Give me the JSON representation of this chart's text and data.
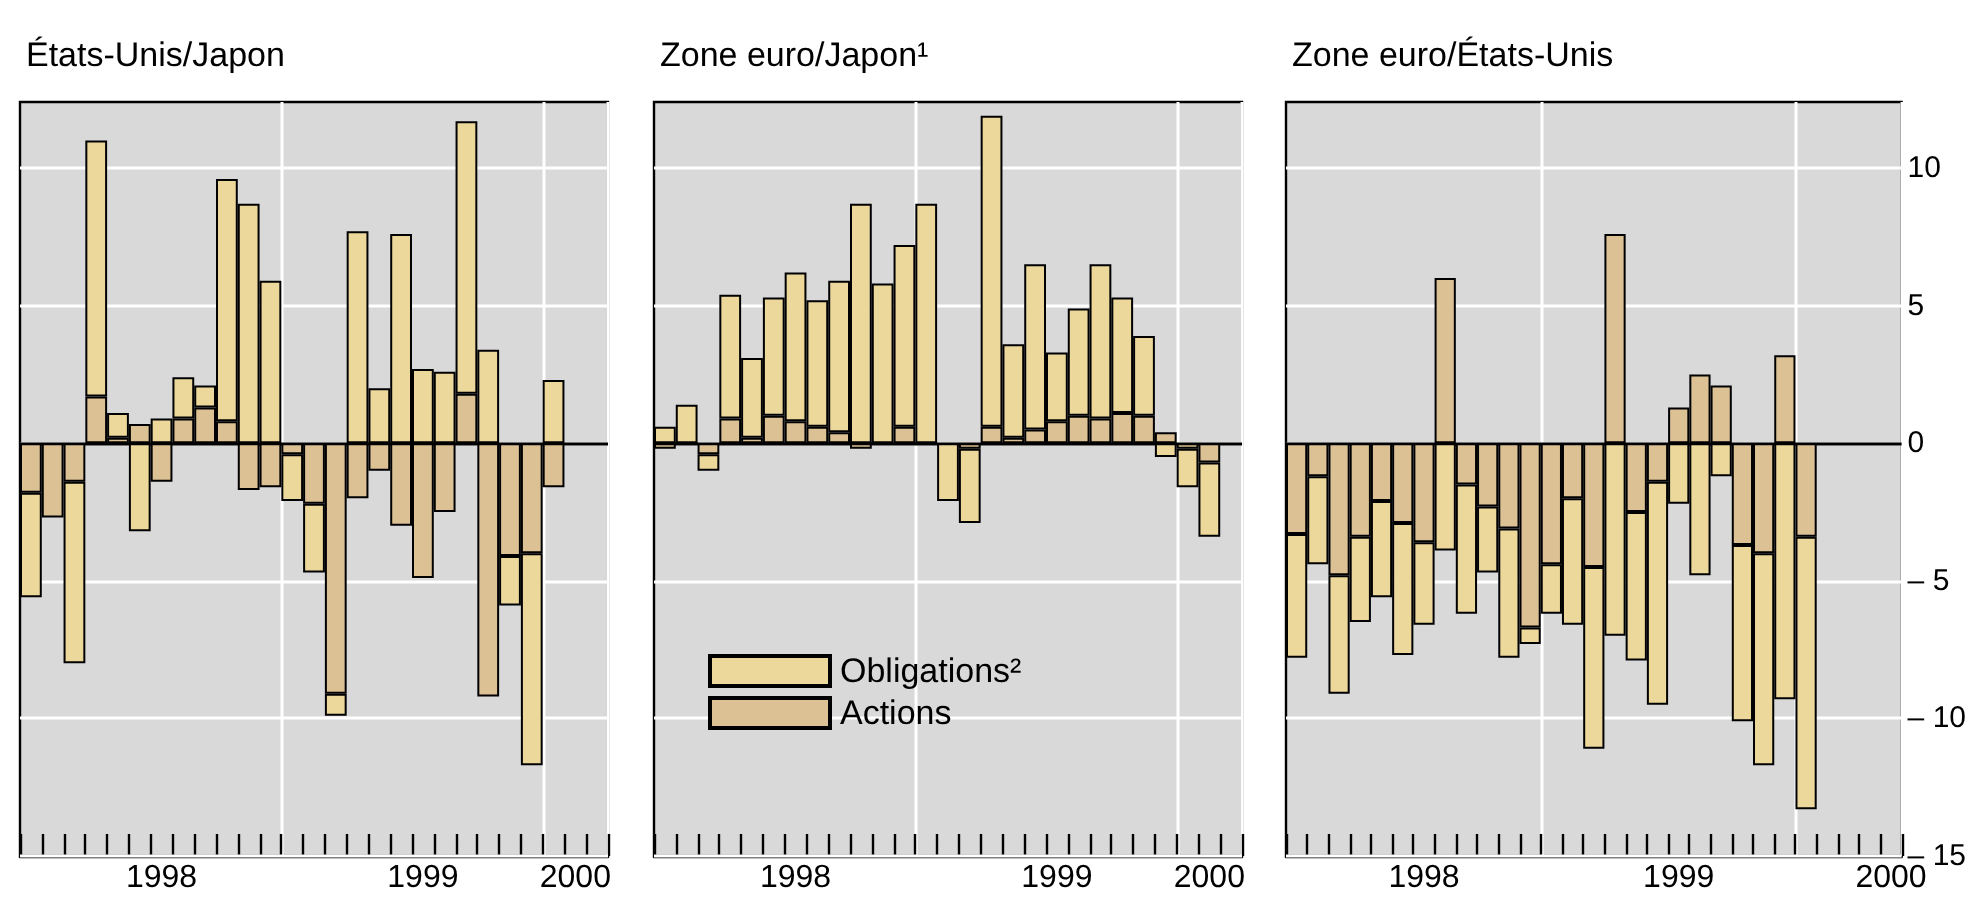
{
  "chart_data": [
    {
      "type": "bar",
      "title": "États-Unis/Japon",
      "stacked": true,
      "tick_labels": "x",
      "grid": true,
      "legend": false,
      "categories": [
        null,
        null,
        null,
        null,
        null,
        null,
        "1998",
        null,
        null,
        null,
        null,
        null,
        null,
        null,
        null,
        null,
        null,
        null,
        "1999",
        null,
        null,
        null,
        null,
        null,
        null,
        "2000",
        null
      ],
      "series": [
        {
          "color": "#dbc194",
          "values": [
            -1.8,
            -2.7,
            -1.4,
            1.7,
            0.2,
            0.7,
            -1.4,
            0.9,
            1.3,
            0.8,
            -1.7,
            -1.6,
            -0.4,
            -2.2,
            -9.1,
            -2.0,
            -1.0,
            -3.0,
            -4.9,
            -2.5,
            1.8,
            -9.2,
            -4.1,
            -4.0,
            -1.6,
            null,
            null
          ]
        },
        {
          "color": "#edd89c",
          "values": [
            -3.8,
            null,
            -6.6,
            9.3,
            0.9,
            -3.2,
            0.9,
            1.5,
            0.8,
            8.8,
            8.7,
            5.9,
            -1.7,
            -2.5,
            -0.8,
            7.7,
            2.0,
            7.6,
            2.7,
            2.6,
            9.9,
            3.4,
            -1.8,
            -7.7,
            2.3,
            null,
            null
          ]
        }
      ],
      "ylim": [
        -15,
        12.4
      ],
      "yticks": [
        -15,
        -10,
        -5,
        0,
        5,
        10
      ],
      "ref_lines": [
        {
          "axis": "y",
          "value": 0,
          "color": "#000000"
        }
      ]
    },
    {
      "type": "bar",
      "title": "Zone euro/Japon¹",
      "stacked": true,
      "tick_labels": "x",
      "grid": true,
      "legend": "bottom left",
      "categories": [
        null,
        null,
        null,
        null,
        null,
        null,
        "1998",
        null,
        null,
        null,
        null,
        null,
        null,
        null,
        null,
        null,
        null,
        null,
        "1999",
        null,
        null,
        null,
        null,
        null,
        null,
        "2000",
        null
      ],
      "series": [
        {
          "name": "Actions",
          "color": "#dbc194",
          "values": [
            -0.2,
            0,
            -0.4,
            0.9,
            0.2,
            1.0,
            0.8,
            0.6,
            0.4,
            -0.2,
            null,
            0.6,
            0,
            null,
            -0.2,
            0.6,
            0.2,
            0.5,
            0.8,
            1.0,
            0.9,
            1.1,
            1.0,
            0.4,
            -0.2,
            -0.7,
            null
          ]
        },
        {
          "name": "Obligations²",
          "color": "#edd89c",
          "values": [
            0.6,
            1.4,
            -0.6,
            4.5,
            2.9,
            4.3,
            5.4,
            4.6,
            5.5,
            8.7,
            5.8,
            6.6,
            8.7,
            -2.1,
            -2.7,
            11.3,
            3.4,
            6.0,
            2.5,
            3.9,
            5.6,
            4.2,
            2.9,
            -0.5,
            -1.4,
            -2.7,
            null
          ]
        }
      ],
      "ylim": [
        -15,
        12.4
      ],
      "yticks": [
        -15,
        -10,
        -5,
        0,
        5,
        10
      ],
      "ref_lines": [
        {
          "axis": "y",
          "value": 0,
          "color": "#000000"
        }
      ]
    },
    {
      "type": "bar",
      "title": "Zone euro/États-Unis",
      "stacked": true,
      "grid": true,
      "legend": false,
      "categories": [
        null,
        null,
        null,
        null,
        null,
        null,
        "1998",
        null,
        null,
        null,
        null,
        null,
        null,
        null,
        null,
        null,
        null,
        null,
        "1999",
        null,
        null,
        null,
        null,
        null,
        null,
        null,
        null,
        null,
        "2000"
      ],
      "series": [
        {
          "color": "#dbc194",
          "values": [
            -3.3,
            -1.2,
            -4.8,
            -3.4,
            -2.1,
            -2.9,
            -3.6,
            6.0,
            -1.5,
            -2.3,
            -3.1,
            -6.7,
            -4.4,
            -2.0,
            -4.5,
            7.6,
            -2.5,
            -1.4,
            1.3,
            2.5,
            2.1,
            -3.7,
            -4.0,
            3.2,
            -3.4,
            null,
            null,
            null,
            null
          ]
        },
        {
          "color": "#edd89c",
          "values": [
            -4.5,
            -3.2,
            -4.3,
            -3.1,
            -3.5,
            -4.8,
            -3.0,
            -3.9,
            -4.7,
            -2.4,
            -4.7,
            -0.6,
            -1.8,
            -4.6,
            -6.6,
            -7.0,
            -5.4,
            -8.1,
            -2.2,
            -4.8,
            -1.2,
            -6.4,
            -7.7,
            -9.3,
            -9.9,
            null,
            null,
            null,
            null
          ]
        }
      ],
      "ylim": [
        -15,
        12.4
      ],
      "yticks": [
        {
          "value": -15,
          "label": "– 15"
        },
        {
          "value": -10,
          "label": "– 10"
        },
        {
          "value": -5,
          "label": "– 5"
        },
        0,
        5,
        10
      ],
      "ref_lines": [
        {
          "axis": "y",
          "value": 0,
          "color": "#000000"
        }
      ]
    }
  ]
}
